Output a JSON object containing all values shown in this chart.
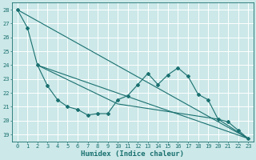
{
  "title": "",
  "xlabel": "Humidex (Indice chaleur)",
  "bg_color": "#cce8e8",
  "grid_color": "#ffffff",
  "line_color": "#1a7070",
  "xlim": [
    -0.5,
    23.5
  ],
  "ylim": [
    18.5,
    28.5
  ],
  "yticks": [
    19,
    20,
    21,
    22,
    23,
    24,
    25,
    26,
    27,
    28
  ],
  "xticks": [
    0,
    1,
    2,
    3,
    4,
    5,
    6,
    7,
    8,
    9,
    10,
    11,
    12,
    13,
    14,
    15,
    16,
    17,
    18,
    19,
    20,
    21,
    22,
    23
  ],
  "series1": [
    28.0,
    26.7,
    24.0,
    22.5,
    21.5,
    21.0,
    20.8,
    20.4,
    20.5,
    20.5,
    21.5,
    21.8,
    22.6,
    23.4,
    22.6,
    23.3,
    23.8,
    23.2,
    21.9,
    21.5,
    20.1,
    19.9,
    19.3,
    18.7
  ],
  "line2_x": [
    0,
    23
  ],
  "line2_y": [
    28.0,
    18.7
  ],
  "line3_x": [
    2,
    23
  ],
  "line3_y": [
    24.0,
    18.7
  ],
  "line4_x": [
    2,
    10,
    20,
    23
  ],
  "line4_y": [
    24.0,
    21.2,
    20.1,
    18.7
  ],
  "xlabel_fontsize": 6.5,
  "tick_fontsize": 5.0,
  "lw": 0.8,
  "ms": 2.0
}
